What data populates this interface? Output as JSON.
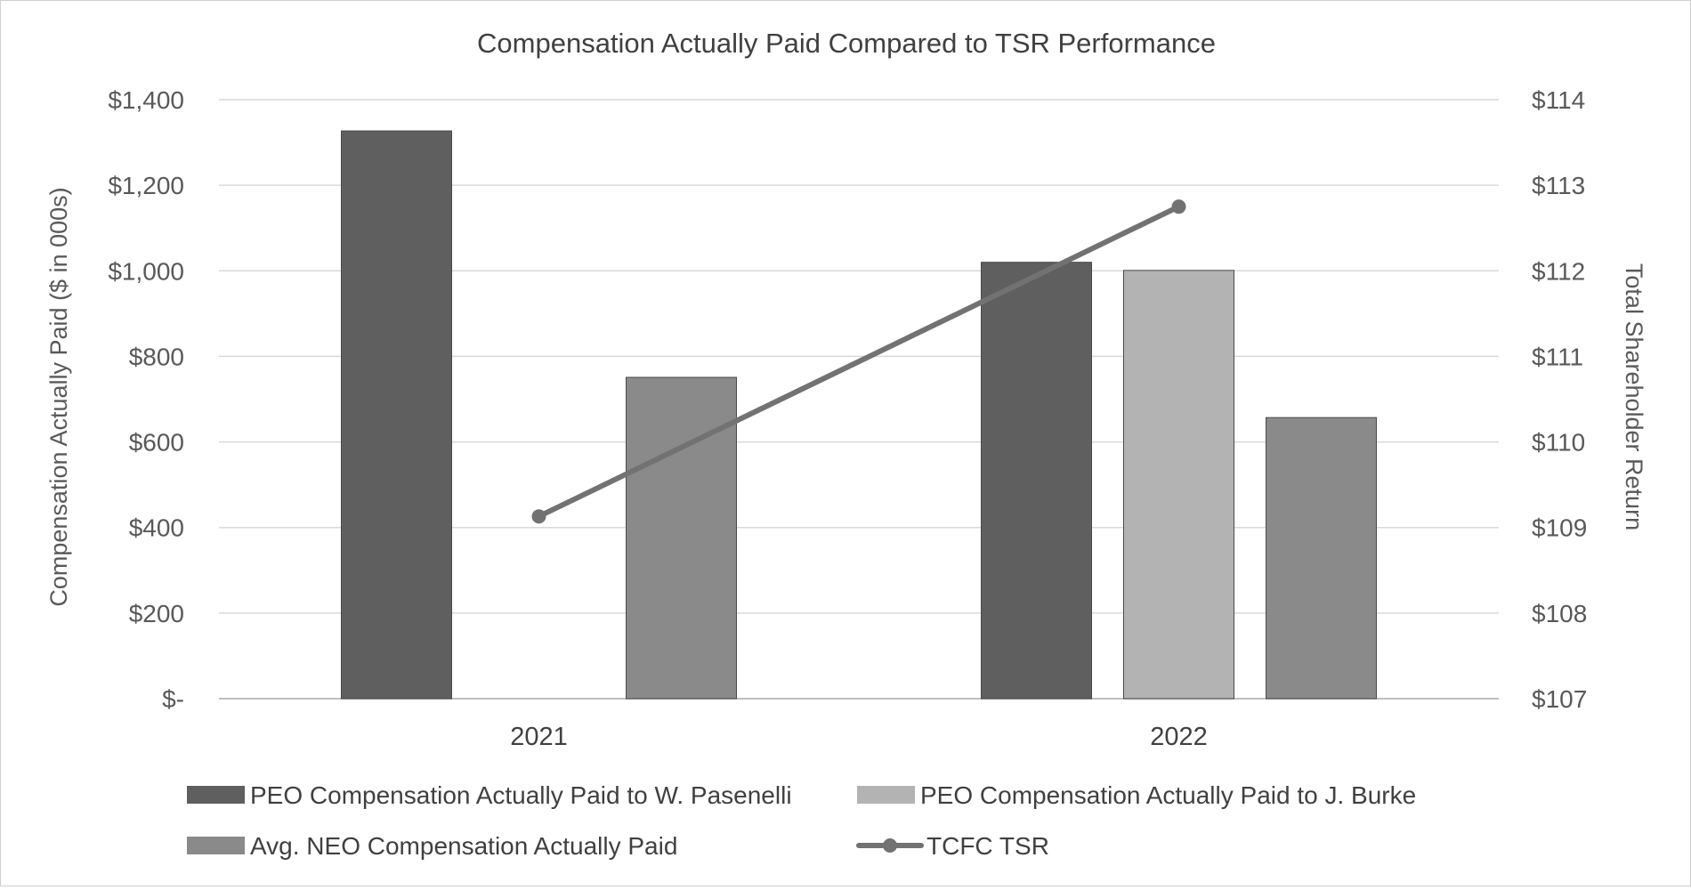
{
  "chart_data": {
    "type": "bar",
    "title": "Compensation Actually Paid Compared to TSR Performance",
    "ylabel": "Compensation Actually Paid ($ in 000s)",
    "y2label": "Total Shareholder Return",
    "categories": [
      "2021",
      "2022"
    ],
    "ylim": [
      0,
      1400
    ],
    "y2lim": [
      107,
      114
    ],
    "y_ticks": [
      {
        "value": 0,
        "label": "$-"
      },
      {
        "value": 200,
        "label": "$200"
      },
      {
        "value": 400,
        "label": "$400"
      },
      {
        "value": 600,
        "label": "$600"
      },
      {
        "value": 800,
        "label": "$800"
      },
      {
        "value": 1000,
        "label": "$1,000"
      },
      {
        "value": 1200,
        "label": "$1,200"
      },
      {
        "value": 1400,
        "label": "$1,400"
      }
    ],
    "y2_ticks": [
      {
        "value": 107,
        "label": "$107"
      },
      {
        "value": 108,
        "label": "$108"
      },
      {
        "value": 109,
        "label": "$109"
      },
      {
        "value": 110,
        "label": "$110"
      },
      {
        "value": 111,
        "label": "$111"
      },
      {
        "value": 112,
        "label": "$112"
      },
      {
        "value": 113,
        "label": "$113"
      },
      {
        "value": 114,
        "label": "$114"
      }
    ],
    "grid": true,
    "legend_position": "bottom",
    "series": [
      {
        "name": "PEO Compensation Actually Paid to W. Pasenelli",
        "kind": "bar",
        "axis": "left",
        "color": "#5f5f5f",
        "values": [
          1327,
          1020
        ]
      },
      {
        "name": "PEO Compensation Actually Paid to J. Burke",
        "kind": "bar",
        "axis": "left",
        "color": "#b3b3b3",
        "values": [
          null,
          1001
        ]
      },
      {
        "name": "Avg. NEO Compensation Actually Paid",
        "kind": "bar",
        "axis": "left",
        "color": "#8a8a8a",
        "values": [
          751,
          657
        ]
      },
      {
        "name": "TCFC TSR",
        "kind": "line",
        "axis": "right",
        "color": "#727272",
        "values": [
          109.13,
          112.75
        ]
      }
    ]
  }
}
